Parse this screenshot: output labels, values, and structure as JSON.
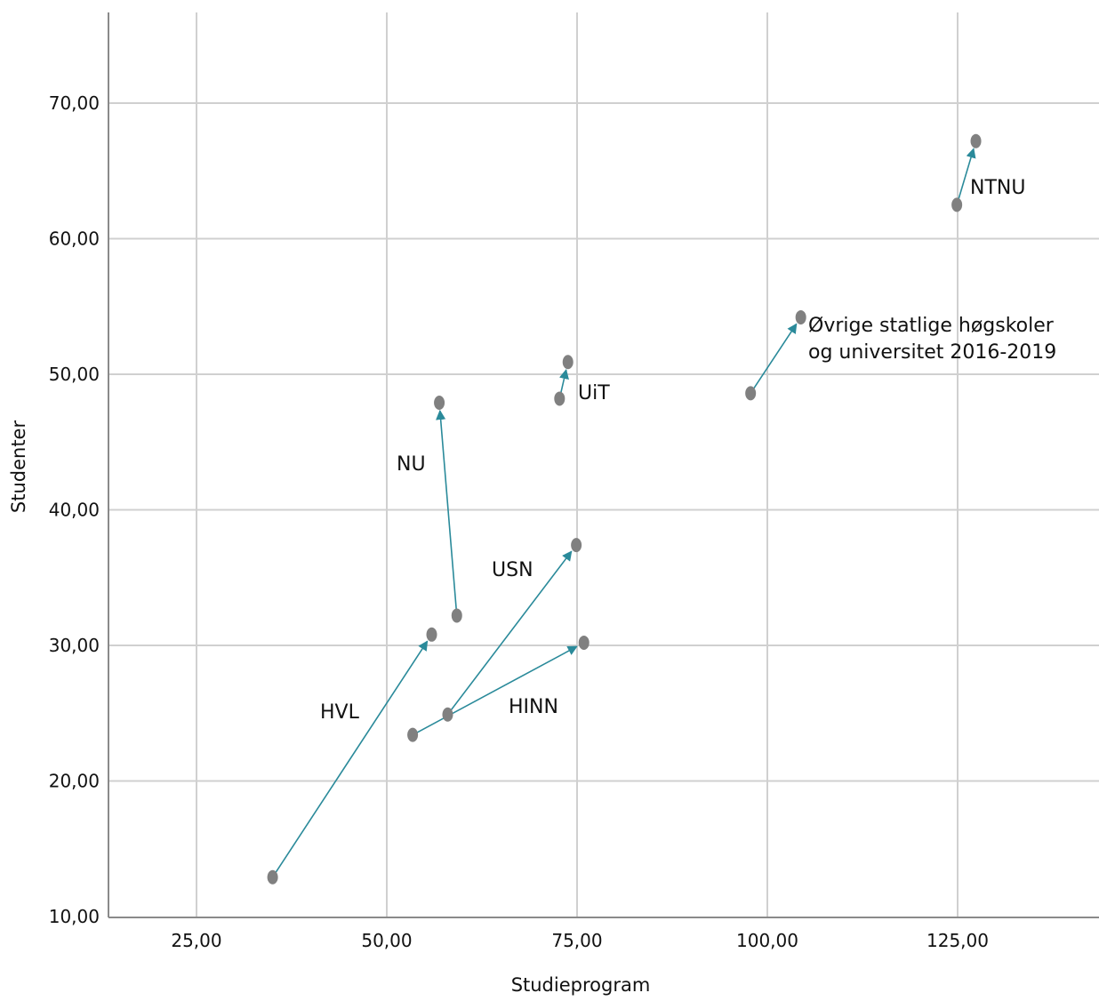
{
  "chart_data": {
    "type": "scatter",
    "xlabel": "Studieprogram",
    "ylabel": "Studenter",
    "xlim": [
      15,
      145
    ],
    "ylim": [
      10,
      76
    ],
    "x_ticks": [
      25,
      50,
      75,
      100,
      125
    ],
    "x_tick_labels": [
      "25,00",
      "50,00",
      "75,00",
      "100,00",
      "125,00"
    ],
    "y_ticks": [
      10,
      20,
      30,
      40,
      50,
      60,
      70
    ],
    "y_tick_labels": [
      "10,00",
      "20,00",
      "30,00",
      "40,00",
      "50,00",
      "60,00",
      "70,00"
    ],
    "grid": true,
    "point_color": "#808080",
    "arrow_color": "#2a8a9a",
    "series": [
      {
        "label": "HVL",
        "from": [
          35.0,
          12.9
        ],
        "to": [
          55.9,
          30.8
        ]
      },
      {
        "label": "NU",
        "from": [
          59.2,
          32.2
        ],
        "to": [
          56.9,
          47.9
        ]
      },
      {
        "label": "USN",
        "from": [
          58.0,
          24.9
        ],
        "to": [
          74.9,
          37.4
        ]
      },
      {
        "label": "HINN",
        "from": [
          53.4,
          23.4
        ],
        "to": [
          75.9,
          30.2
        ]
      },
      {
        "label": "UiT",
        "from": [
          72.7,
          48.2
        ],
        "to": [
          73.8,
          50.9
        ]
      },
      {
        "label": "Øvrige statlige høgskoler og universitet 2016-2019",
        "label_lines": [
          "Øvrige statlige høgskoler",
          "og universitet 2016-2019"
        ],
        "from": [
          97.8,
          48.6
        ],
        "to": [
          104.4,
          54.2
        ]
      },
      {
        "label": "NTNU",
        "from": [
          124.9,
          62.5
        ],
        "to": [
          127.4,
          67.2
        ]
      }
    ]
  }
}
